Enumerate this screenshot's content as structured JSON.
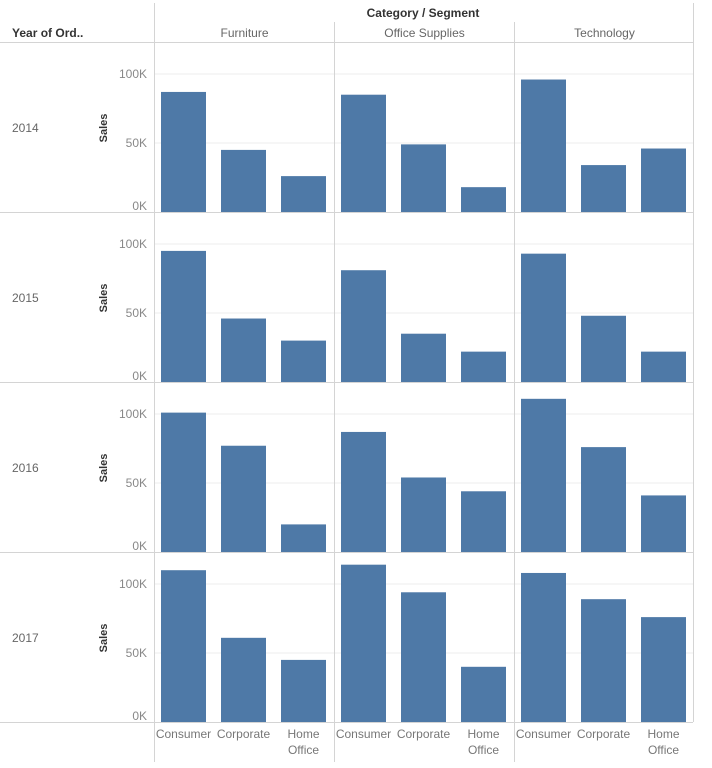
{
  "header": {
    "column_title": "Category / Segment",
    "row_title": "Year of Ord.."
  },
  "chart_data": {
    "type": "bar",
    "title": "",
    "ylabel": "Sales",
    "ylim": [
      0,
      120000
    ],
    "y_ticks": [
      0,
      50000,
      100000
    ],
    "y_tick_labels": [
      "0K",
      "50K",
      "100K"
    ],
    "categories_outer": [
      "Furniture",
      "Office Supplies",
      "Technology"
    ],
    "segments": [
      "Consumer",
      "Corporate",
      "Home Office"
    ],
    "years": [
      "2014",
      "2015",
      "2016",
      "2017"
    ],
    "values": {
      "2014": {
        "Furniture": [
          87000,
          45000,
          26000
        ],
        "Office Supplies": [
          85000,
          49000,
          18000
        ],
        "Technology": [
          96000,
          34000,
          46000
        ]
      },
      "2015": {
        "Furniture": [
          95000,
          46000,
          30000
        ],
        "Office Supplies": [
          81000,
          35000,
          22000
        ],
        "Technology": [
          93000,
          48000,
          22000
        ]
      },
      "2016": {
        "Furniture": [
          101000,
          77000,
          20000
        ],
        "Office Supplies": [
          87000,
          54000,
          44000
        ],
        "Technology": [
          111000,
          76000,
          41000
        ]
      },
      "2017": {
        "Furniture": [
          110000,
          61000,
          45000
        ],
        "Office Supplies": [
          114000,
          94000,
          40000
        ],
        "Technology": [
          108000,
          89000,
          76000
        ]
      }
    },
    "grid": true,
    "legend": "none",
    "bar_color": "#4e79a7"
  }
}
